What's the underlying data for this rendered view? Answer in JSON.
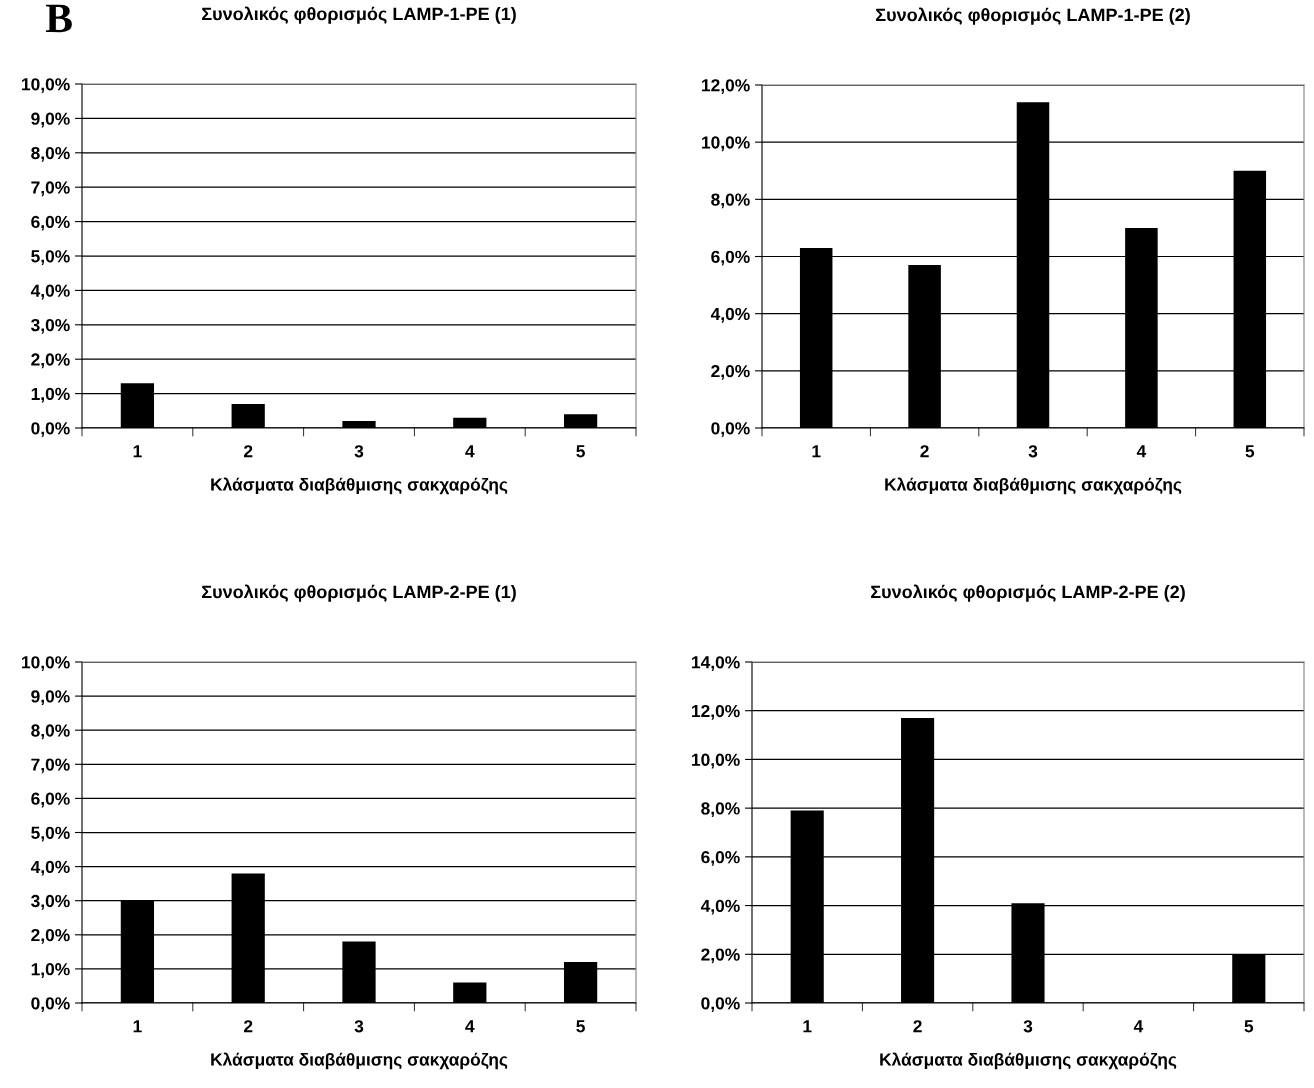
{
  "chart_data": [
    {
      "type": "bar",
      "title": "Συνολικός φθορισμός LAMP-1-PE (1)",
      "xlabel": "Κλάσματα διαβάθμισης σακχαρόζης",
      "annotations": [
        "B"
      ],
      "categories": [
        "1",
        "2",
        "3",
        "4",
        "5"
      ],
      "values": [
        1.3,
        0.7,
        0.2,
        0.3,
        0.4
      ],
      "color": "#000000",
      "ylim": [
        0,
        10
      ],
      "yticks": [
        {
          "value": 0,
          "label": "0,0%"
        },
        {
          "value": 1,
          "label": "1,0%"
        },
        {
          "value": 2,
          "label": "2,0%"
        },
        {
          "value": 3,
          "label": "3,0%"
        },
        {
          "value": 4,
          "label": "4,0%"
        },
        {
          "value": 5,
          "label": "5,0%"
        },
        {
          "value": 6,
          "label": "6,0%"
        },
        {
          "value": 7,
          "label": "7,0%"
        },
        {
          "value": 8,
          "label": "8,0%"
        },
        {
          "value": 9,
          "label": "9,0%"
        },
        {
          "value": 10,
          "label": "10,0%"
        }
      ],
      "grid": "y",
      "legend": false
    },
    {
      "type": "bar",
      "title": "Συνολικός φθορισμός LAMP-1-PE (2)",
      "xlabel": "Κλάσματα διαβάθμισης σακχαρόζης",
      "categories": [
        "1",
        "2",
        "3",
        "4",
        "5"
      ],
      "values": [
        6.3,
        5.7,
        11.4,
        7.0,
        9.0
      ],
      "color": "#000000",
      "ylim": [
        0,
        12
      ],
      "yticks": [
        {
          "value": 0,
          "label": "0,0%"
        },
        {
          "value": 2,
          "label": "2,0%"
        },
        {
          "value": 4,
          "label": "4,0%"
        },
        {
          "value": 6,
          "label": "6,0%"
        },
        {
          "value": 8,
          "label": "8,0%"
        },
        {
          "value": 10,
          "label": "10,0%"
        },
        {
          "value": 12,
          "label": "12,0%"
        }
      ],
      "grid": "y",
      "legend": false
    },
    {
      "type": "bar",
      "title": "Συνολικός φθορισμός LAMP-2-PE (1)",
      "xlabel": "Κλάσματα διαβάθμισης σακχαρόζης",
      "categories": [
        "1",
        "2",
        "3",
        "4",
        "5"
      ],
      "values": [
        3.0,
        3.8,
        1.8,
        0.6,
        1.2
      ],
      "color": "#000000",
      "ylim": [
        0,
        10
      ],
      "yticks": [
        {
          "value": 0,
          "label": "0,0%"
        },
        {
          "value": 1,
          "label": "1,0%"
        },
        {
          "value": 2,
          "label": "2,0%"
        },
        {
          "value": 3,
          "label": "3,0%"
        },
        {
          "value": 4,
          "label": "4,0%"
        },
        {
          "value": 5,
          "label": "5,0%"
        },
        {
          "value": 6,
          "label": "6,0%"
        },
        {
          "value": 7,
          "label": "7,0%"
        },
        {
          "value": 8,
          "label": "8,0%"
        },
        {
          "value": 9,
          "label": "9,0%"
        },
        {
          "value": 10,
          "label": "10,0%"
        }
      ],
      "grid": "y",
      "legend": false
    },
    {
      "type": "bar",
      "title": "Συνολικός φθορισμός LAMP-2-PE (2)",
      "xlabel": "Κλάσματα διαβάθμισης σακχαρόζης",
      "categories": [
        "1",
        "2",
        "3",
        "4",
        "5"
      ],
      "values": [
        7.9,
        11.7,
        4.1,
        0,
        2.0
      ],
      "color": "#000000",
      "ylim": [
        0,
        14
      ],
      "yticks": [
        {
          "value": 0,
          "label": "0,0%"
        },
        {
          "value": 2,
          "label": "2,0%"
        },
        {
          "value": 4,
          "label": "4,0%"
        },
        {
          "value": 6,
          "label": "6,0%"
        },
        {
          "value": 8,
          "label": "8,0%"
        },
        {
          "value": 10,
          "label": "10,0%"
        },
        {
          "value": 12,
          "label": "12,0%"
        },
        {
          "value": 14,
          "label": "14,0%"
        }
      ],
      "grid": "y",
      "legend": false
    }
  ]
}
